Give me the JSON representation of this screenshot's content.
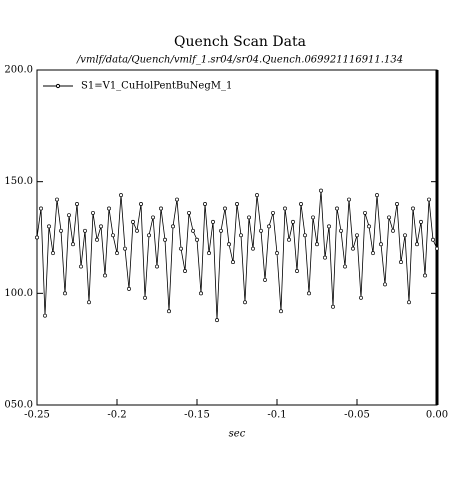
{
  "chart_data": {
    "type": "line",
    "title": "Quench Scan Data",
    "subtitle": "/vmlf/data/Quench/vmlf_1.sr04/sr04.Quench.069921116911.134",
    "xlabel": "sec",
    "xlim": [
      -0.25,
      0
    ],
    "xticks": [
      -0.25,
      -0.2,
      -0.15,
      -0.1,
      -0.05,
      {
        "value": 0,
        "label": "0.00"
      }
    ],
    "ylim": [
      50,
      200
    ],
    "yticks": [
      {
        "value": 50,
        "label": "050.0"
      },
      {
        "value": 100,
        "label": "100.0"
      },
      {
        "value": 150,
        "label": "150.0"
      },
      {
        "value": 200,
        "label": "200.0"
      }
    ],
    "x": [
      -0.25,
      -0.2475,
      -0.245,
      -0.2425,
      -0.24,
      -0.2375,
      -0.235,
      -0.2325,
      -0.23,
      -0.2275,
      -0.225,
      -0.2225,
      -0.22,
      -0.2175,
      -0.215,
      -0.2125,
      -0.21,
      -0.2075,
      -0.205,
      -0.2025,
      -0.2,
      -0.1975,
      -0.195,
      -0.1925,
      -0.19,
      -0.1875,
      -0.185,
      -0.1825,
      -0.18,
      -0.1775,
      -0.175,
      -0.1725,
      -0.17,
      -0.1675,
      -0.165,
      -0.1625,
      -0.16,
      -0.1575,
      -0.155,
      -0.1525,
      -0.15,
      -0.1475,
      -0.145,
      -0.1425,
      -0.14,
      -0.1375,
      -0.135,
      -0.1325,
      -0.13,
      -0.1275,
      -0.125,
      -0.1225,
      -0.12,
      -0.1175,
      -0.115,
      -0.1125,
      -0.11,
      -0.1075,
      -0.105,
      -0.1025,
      -0.1,
      -0.0975,
      -0.095,
      -0.0925,
      -0.09,
      -0.0875,
      -0.085,
      -0.0825,
      -0.08,
      -0.0775,
      -0.075,
      -0.0725,
      -0.07,
      -0.0675,
      -0.065,
      -0.0625,
      -0.06,
      -0.0575,
      -0.055,
      -0.0525,
      -0.05,
      -0.0475,
      -0.045,
      -0.0425,
      -0.04,
      -0.0375,
      -0.035,
      -0.0325,
      -0.03,
      -0.0275,
      -0.025,
      -0.0225,
      -0.02,
      -0.0175,
      -0.015,
      -0.0125,
      -0.01,
      -0.0075,
      -0.005,
      -0.0025,
      0
    ],
    "series": [
      {
        "name": "S1=V1_CuHolPentBuNegM_1",
        "color": "#000000",
        "values": [
          125,
          138,
          90,
          130,
          118,
          142,
          128,
          100,
          135,
          122,
          140,
          112,
          128,
          96,
          136,
          124,
          130,
          108,
          138,
          126,
          118,
          144,
          120,
          102,
          132,
          128,
          140,
          98,
          126,
          134,
          112,
          138,
          124,
          92,
          130,
          142,
          120,
          110,
          136,
          128,
          124,
          100,
          140,
          118,
          132,
          88,
          128,
          138,
          122,
          114,
          140,
          126,
          96,
          134,
          120,
          144,
          128,
          106,
          130,
          136,
          118,
          92,
          138,
          124,
          132,
          110,
          140,
          126,
          100,
          134,
          122,
          146,
          116,
          130,
          94,
          138,
          128,
          112,
          142,
          120,
          126,
          98,
          136,
          130,
          118,
          144,
          122,
          104,
          134,
          128,
          140,
          114,
          126,
          96,
          138,
          122,
          132,
          108,
          142,
          124,
          120
        ]
      }
    ]
  }
}
